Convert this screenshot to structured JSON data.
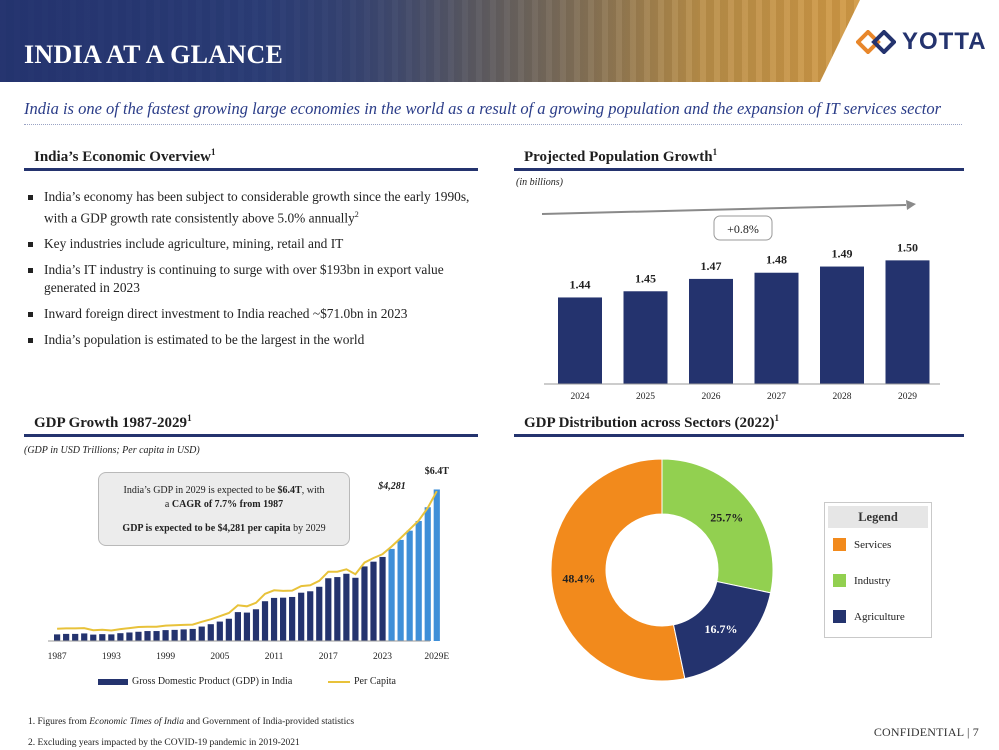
{
  "header": {
    "title": "INDIA AT A GLANCE",
    "logo_text": "YOTTA",
    "logo_icon": "yotta-logo-icon"
  },
  "tagline": "India is one of the fastest growing large economies in the world as a result of a growing population and the expansion of IT services sector",
  "overview": {
    "title": "India’s Economic Overview",
    "title_sup": "1",
    "bullets": [
      {
        "text": "India’s economy has been subject to considerable growth since the early 1990s, with a GDP growth rate consistently above 5.0% annually",
        "sup": "2"
      },
      {
        "text": "Key industries include agriculture, mining, retail and IT",
        "sup": ""
      },
      {
        "text": "India’s IT industry is continuing to surge with over $193bn in export value generated in 2023",
        "sup": ""
      },
      {
        "text": "Inward foreign direct investment to India reached ~$71.0bn in 2023",
        "sup": ""
      },
      {
        "text": "India’s population is estimated to be the largest in the world",
        "sup": ""
      }
    ]
  },
  "population": {
    "title": "Projected Population Growth",
    "title_sup": "1",
    "unit_note": "(in billions)",
    "growth_label": "+0.8%"
  },
  "gdp": {
    "title": "GDP Growth 1987-2029",
    "title_sup": "1",
    "unit_note": "(GDP in USD Trillions; Per capita in USD)",
    "callout": {
      "line1_pre": "India’s GDP in 2029 is expected to be ",
      "line1_bold": "$6.4T",
      "line1_post": ", with",
      "line2_pre": "a ",
      "line2_bold": "CAGR of 7.7% from 1987",
      "line3_bold": "GDP is expected to be $4,281 per capita",
      "line3_post": " by 2029"
    },
    "end_gdp_label": "$6.4T",
    "end_percap_label": "$4,281",
    "legend_gdp": "Gross Domestic Product (GDP) in India",
    "legend_percap": "Per Capita"
  },
  "sectors": {
    "title": "GDP Distribution across Sectors (2022)",
    "title_sup": "1",
    "legend_title": "Legend"
  },
  "footnotes": {
    "f1_pre": "1.  Figures from ",
    "f1_italic": "Economic Times of India",
    "f1_post": " and Government of India-provided statistics",
    "f2": "2.  Excluding years impacted by the COVID-19 pandemic in 2019-2021"
  },
  "confidential": "CONFIDENTIAL  |  7",
  "colors": {
    "navy": "#24336e",
    "light_blue": "#3f8fd8",
    "gold": "#e8c23a",
    "orange": "#f28a1c",
    "green": "#92d050"
  },
  "chart_data": [
    {
      "type": "bar",
      "title": "Projected Population Growth",
      "ylabel": "in billions",
      "categories": [
        "2024",
        "2025",
        "2026",
        "2027",
        "2028",
        "2029"
      ],
      "values": [
        1.44,
        1.45,
        1.47,
        1.48,
        1.49,
        1.5
      ],
      "labels": [
        "1.44",
        "1.45",
        "1.47",
        "1.48",
        "1.49",
        "1.50"
      ],
      "ylim": [
        1.3,
        1.52
      ]
    },
    {
      "type": "bar",
      "title": "GDP Growth 1987-2029",
      "ylabel": "GDP in USD Trillions; Per capita in USD",
      "x_ticks": [
        "1987",
        "1993",
        "1999",
        "2005",
        "2011",
        "2017",
        "2023",
        "2029E"
      ],
      "years": [
        1987,
        1988,
        1989,
        1990,
        1991,
        1992,
        1993,
        1994,
        1995,
        1996,
        1997,
        1998,
        1999,
        2000,
        2001,
        2002,
        2003,
        2004,
        2005,
        2006,
        2007,
        2008,
        2009,
        2010,
        2011,
        2012,
        2013,
        2014,
        2015,
        2016,
        2017,
        2018,
        2019,
        2020,
        2021,
        2022,
        2023,
        2024,
        2025,
        2026,
        2027,
        2028,
        2029
      ],
      "series": [
        {
          "name": "Gross Domestic Product (GDP) in India",
          "values": [
            0.28,
            0.3,
            0.3,
            0.32,
            0.27,
            0.29,
            0.28,
            0.33,
            0.36,
            0.39,
            0.42,
            0.42,
            0.46,
            0.47,
            0.49,
            0.51,
            0.61,
            0.71,
            0.82,
            0.94,
            1.22,
            1.2,
            1.34,
            1.68,
            1.82,
            1.83,
            1.86,
            2.04,
            2.1,
            2.29,
            2.65,
            2.7,
            2.84,
            2.67,
            3.15,
            3.35,
            3.55,
            3.89,
            4.27,
            4.66,
            5.07,
            5.65,
            6.4
          ]
        },
        {
          "name": "Per Capita",
          "values": [
            350,
            360,
            360,
            370,
            310,
            320,
            300,
            340,
            370,
            400,
            410,
            410,
            440,
            450,
            460,
            470,
            550,
            620,
            710,
            800,
            1020,
            990,
            1090,
            1350,
            1450,
            1430,
            1440,
            1570,
            1590,
            1720,
            1980,
            1980,
            2050,
            1910,
            2240,
            2370,
            2480,
            2700,
            2940,
            3190,
            3440,
            3800,
            4281
          ]
        }
      ],
      "ylim": [
        0,
        6.8
      ],
      "y2lim": [
        0,
        4600
      ]
    },
    {
      "type": "pie",
      "title": "GDP Distribution across Sectors (2022)",
      "style": "donut",
      "categories": [
        "Services",
        "Industry",
        "Agriculture"
      ],
      "values": [
        48.4,
        25.7,
        16.7
      ],
      "labels": [
        "48.4%",
        "25.7%",
        "16.7%"
      ],
      "colors": [
        "#f28a1c",
        "#92d050",
        "#24336e"
      ]
    }
  ]
}
